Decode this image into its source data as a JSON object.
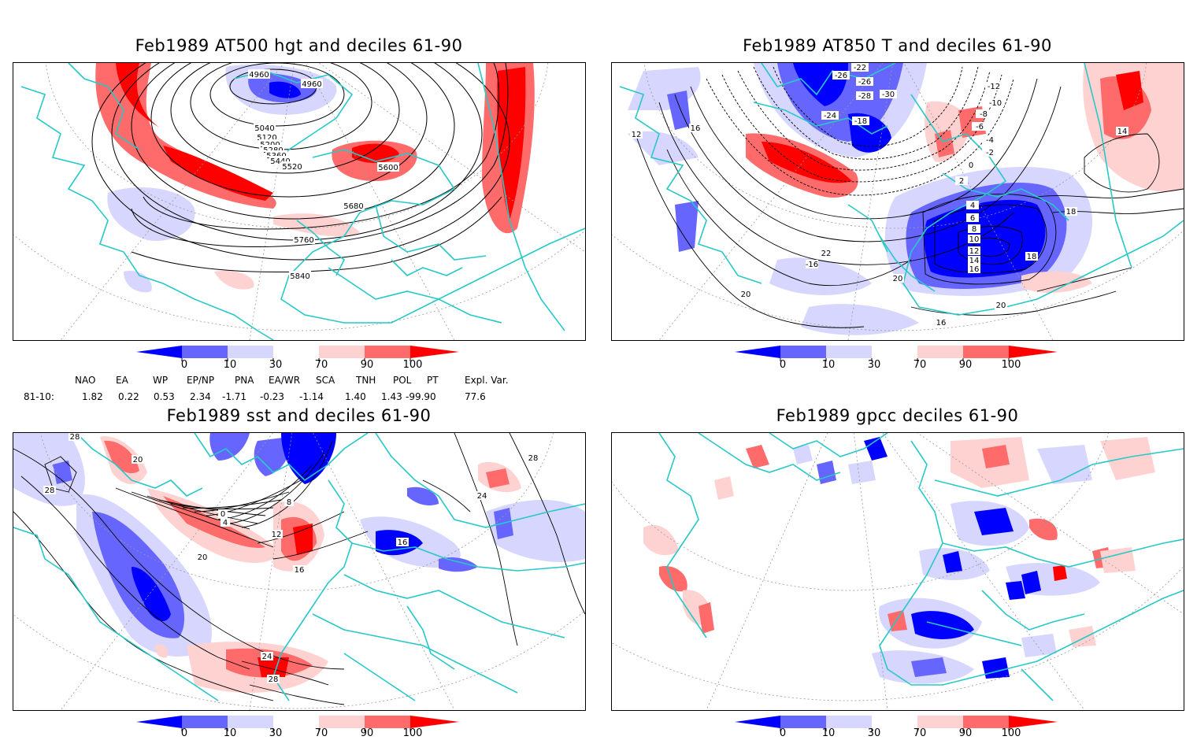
{
  "panels": [
    {
      "title": "Feb1989 AT500 hgt and deciles 61-90",
      "contour_labels": [
        "4960",
        "4960",
        "5040",
        "5120",
        "5200",
        "5280",
        "5360",
        "5440",
        "5520",
        "5600",
        "5680",
        "5760",
        "5840"
      ]
    },
    {
      "title": "Feb1989 AT850 T and deciles 61-90",
      "contour_labels": [
        "-22",
        "-26",
        "-26",
        "-28",
        "-30",
        "-24",
        "-18",
        "-12",
        "-10",
        "-8",
        "-6",
        "-4",
        "-2",
        "0",
        "2",
        "4",
        "6",
        "8",
        "10",
        "12",
        "14",
        "16",
        "18",
        "20",
        "22",
        "-16",
        "12",
        "14",
        "16",
        "16",
        "18",
        "20",
        "20"
      ]
    },
    {
      "title": "Feb1989 sst and deciles 61-90",
      "contour_labels": [
        "28",
        "20",
        "28",
        "0",
        "4",
        "8",
        "12",
        "16",
        "20",
        "24",
        "28",
        "24",
        "28",
        "16"
      ]
    },
    {
      "title": "Feb1989 gpcc deciles 61-90",
      "contour_labels": []
    }
  ],
  "colorbar": {
    "tick_labels": [
      "0",
      "10",
      "30",
      "70",
      "90",
      "100"
    ],
    "colors": [
      "#0000ff",
      "#6666ff",
      "#d6d6ff",
      "#ffffff",
      "#ffd2d2",
      "#ff6a6a",
      "#ff0000"
    ]
  },
  "indices": {
    "headers": [
      "NAO",
      "EA",
      "WP",
      "EP/NP",
      "PNA",
      "EA/WR",
      "SCA",
      "TNH",
      "POL",
      "PT",
      "Expl. Var."
    ],
    "row_label": "81-10:",
    "values": [
      "1.82",
      "0.22",
      "0.53",
      "2.34",
      "-1.71",
      "-0.23",
      "-1.14",
      "1.40",
      "1.43",
      "-99.90",
      "77.6"
    ]
  },
  "map_colors": {
    "coast": "#28c8c8",
    "contour": "#000000"
  }
}
